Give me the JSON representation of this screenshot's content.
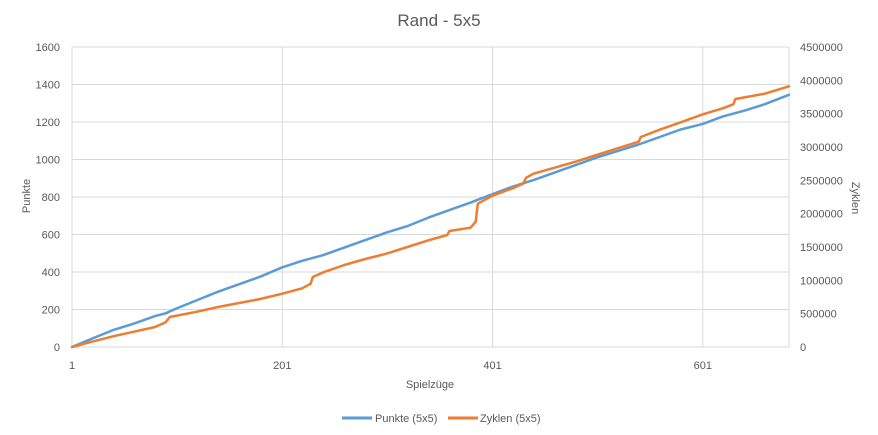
{
  "chart_data": {
    "type": "line",
    "title": "Rand - 5x5",
    "xlabel": "Spielzüge",
    "ylabel": "Punkte",
    "y2label": "Zyklen",
    "xlim": [
      1,
      683
    ],
    "ylim": [
      0,
      1600
    ],
    "y2lim": [
      0,
      4500000
    ],
    "x_ticks": [
      "1",
      "201",
      "401",
      "601"
    ],
    "y_ticks": [
      "0",
      "200",
      "400",
      "600",
      "800",
      "1000",
      "1200",
      "1400",
      "1600"
    ],
    "y2_ticks": [
      "0",
      "500000",
      "1000000",
      "1500000",
      "2000000",
      "2500000",
      "3000000",
      "3500000",
      "4000000",
      "4500000"
    ],
    "grid": true,
    "legend_position": "bottom",
    "series": [
      {
        "name": "Punkte (5x5)",
        "axis": "left",
        "color": "#5B9BD5",
        "x": [
          1,
          20,
          40,
          60,
          80,
          90,
          100,
          120,
          140,
          160,
          180,
          201,
          220,
          240,
          260,
          280,
          300,
          320,
          340,
          360,
          380,
          401,
          420,
          440,
          460,
          480,
          500,
          520,
          540,
          560,
          580,
          601,
          620,
          640,
          660,
          683
        ],
        "y": [
          0,
          45,
          90,
          125,
          165,
          180,
          205,
          250,
          295,
          335,
          375,
          425,
          460,
          490,
          530,
          570,
          610,
          645,
          690,
          730,
          770,
          815,
          855,
          890,
          930,
          970,
          1010,
          1045,
          1080,
          1120,
          1160,
          1190,
          1230,
          1260,
          1295,
          1345
        ]
      },
      {
        "name": "Zyklen (5x5)",
        "axis": "right",
        "color": "#ED7D31",
        "x": [
          1,
          20,
          40,
          60,
          80,
          90,
          92,
          94,
          120,
          140,
          160,
          180,
          201,
          220,
          228,
          230,
          240,
          260,
          280,
          300,
          320,
          340,
          358,
          360,
          380,
          385,
          387,
          401,
          420,
          430,
          433,
          440,
          460,
          480,
          500,
          520,
          540,
          542,
          560,
          580,
          601,
          620,
          630,
          632,
          660,
          683
        ],
        "y": [
          0,
          80000,
          160000,
          230000,
          300000,
          370000,
          410000,
          450000,
          530000,
          600000,
          660000,
          720000,
          800000,
          880000,
          950000,
          1050000,
          1120000,
          1230000,
          1320000,
          1400000,
          1500000,
          1600000,
          1680000,
          1740000,
          1790000,
          1880000,
          2150000,
          2270000,
          2380000,
          2450000,
          2540000,
          2600000,
          2690000,
          2780000,
          2880000,
          2980000,
          3080000,
          3150000,
          3260000,
          3370000,
          3490000,
          3580000,
          3640000,
          3720000,
          3800000,
          3910000
        ]
      }
    ]
  }
}
